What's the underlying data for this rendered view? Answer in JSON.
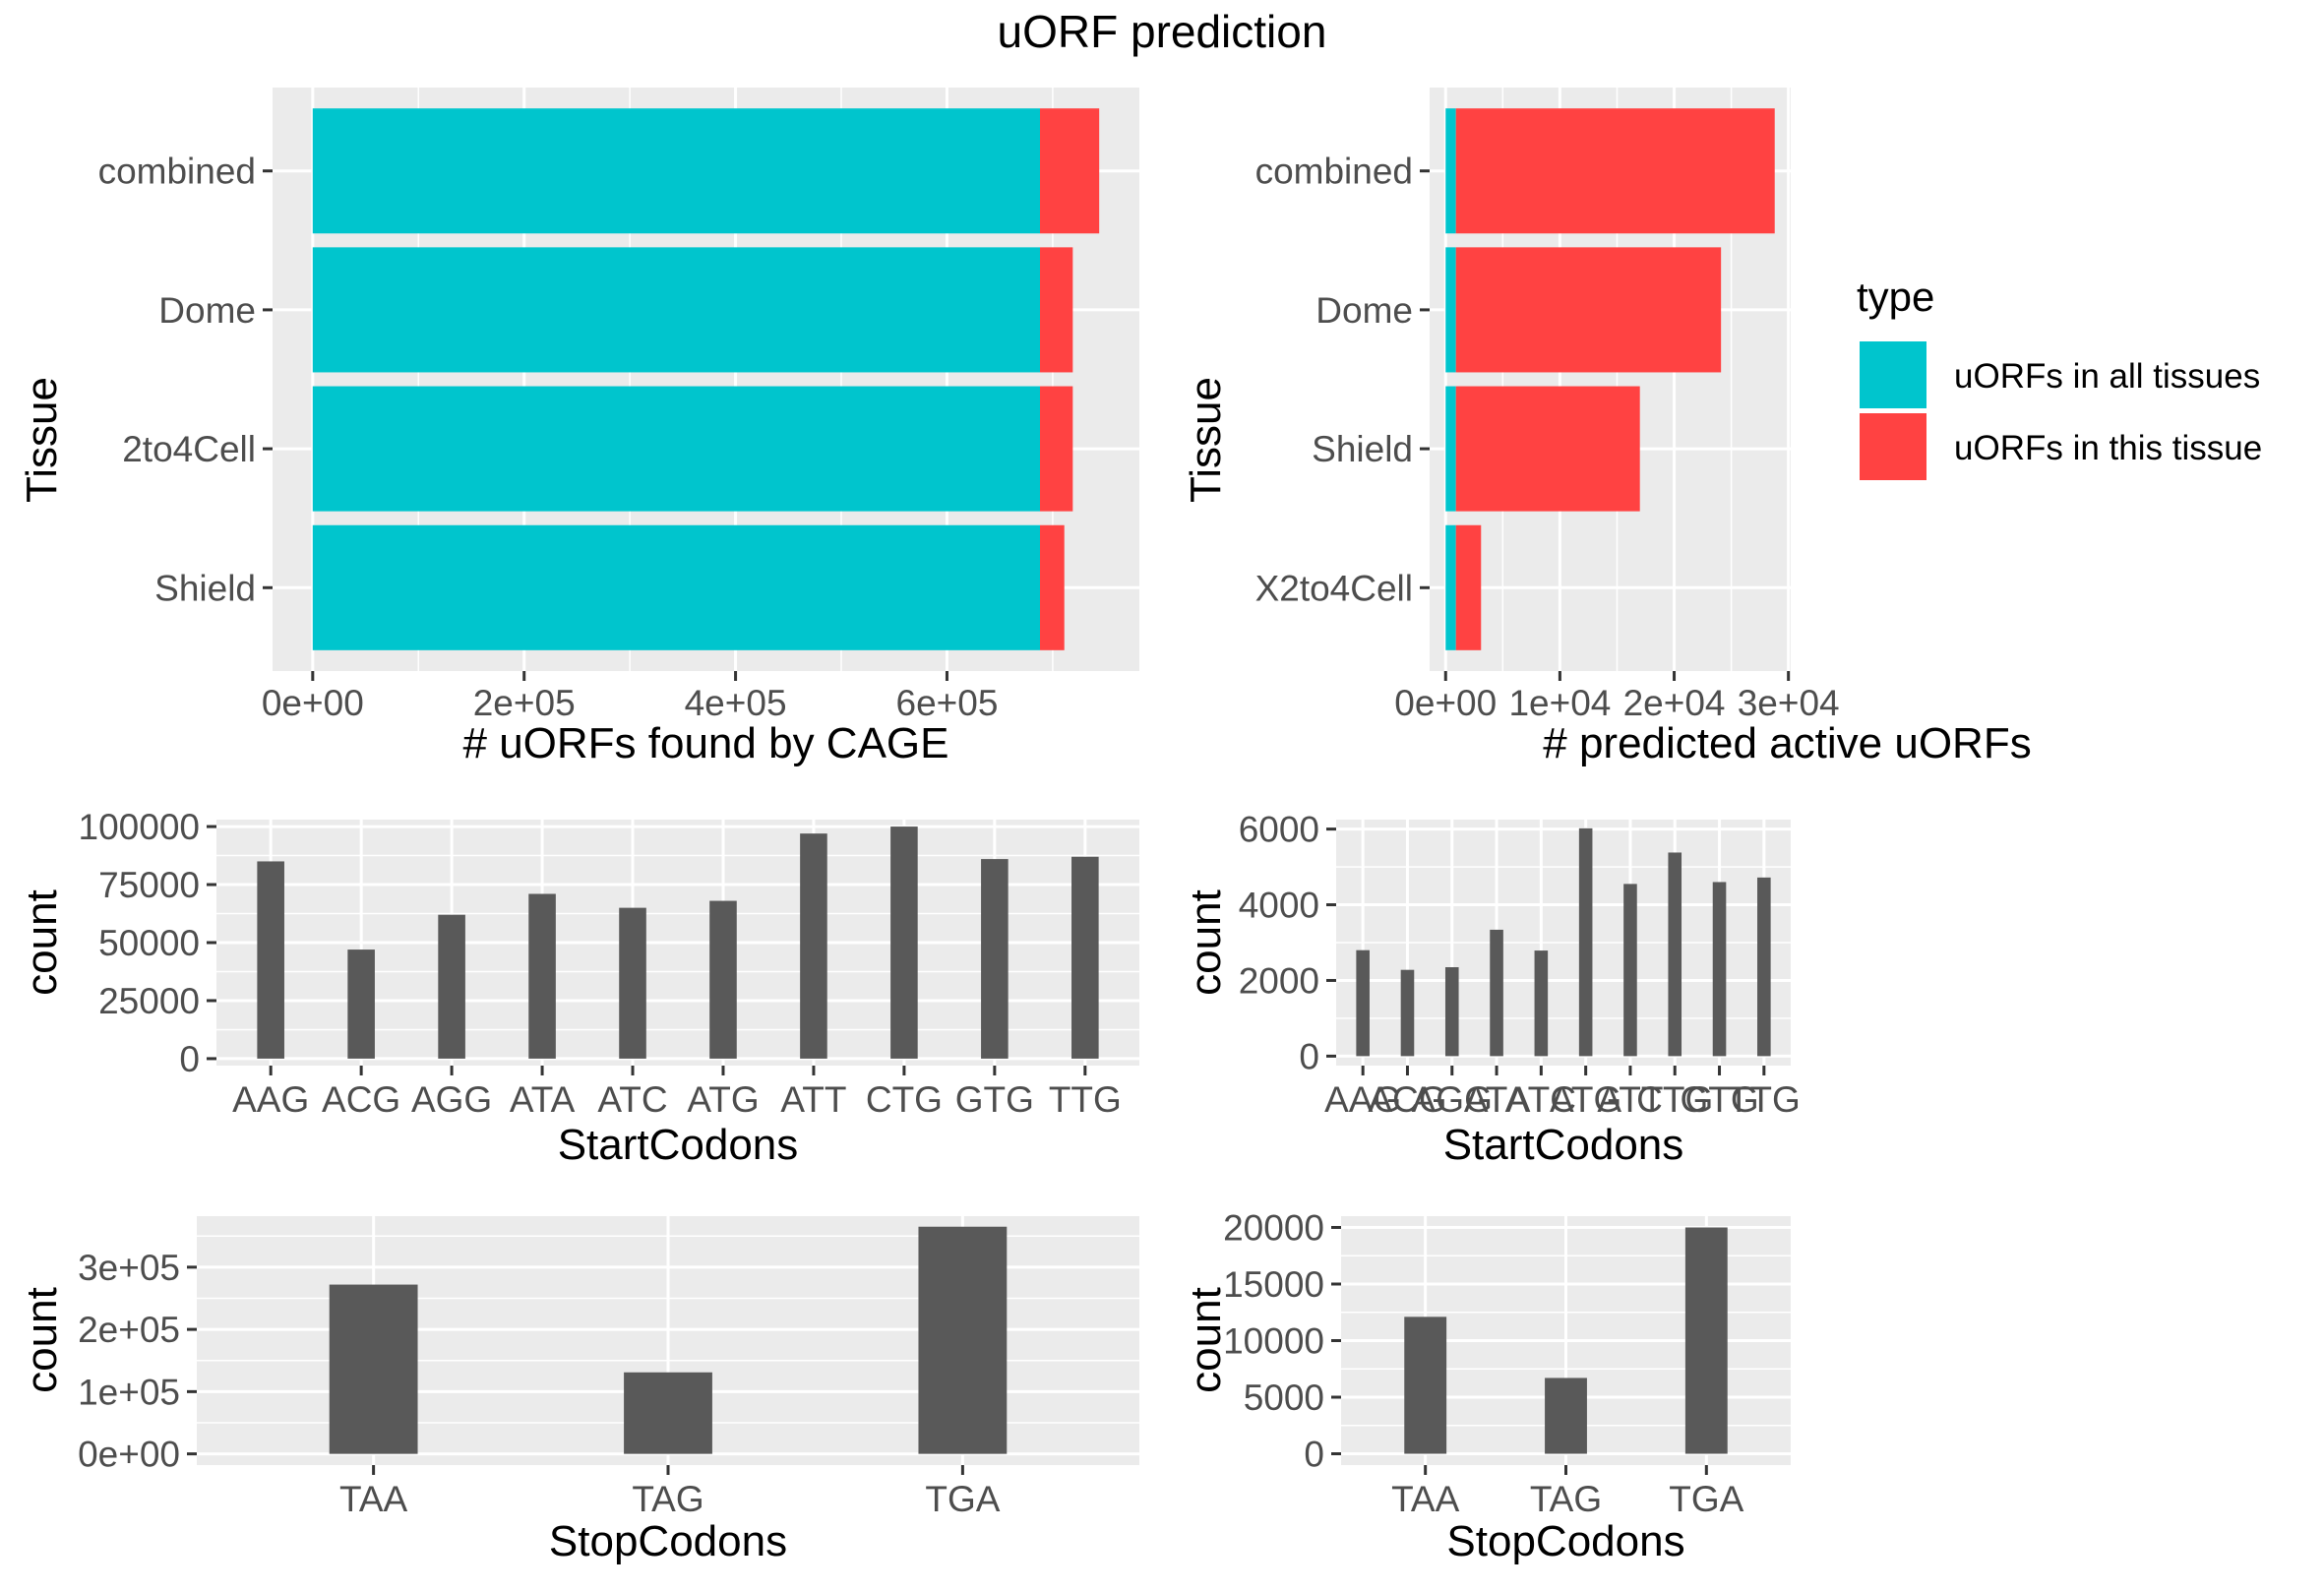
{
  "title": "uORF prediction",
  "colors": {
    "panel_bg": "#ebebeb",
    "grid": "#ffffff",
    "bar_gray": "#595959",
    "tick": "#333333",
    "tick_label": "#4d4d4d",
    "all_tissues": "#00c5cd",
    "this_tissue": "#ff4242"
  },
  "legend": {
    "title": "type",
    "items": [
      {
        "label": "uORFs in all tissues",
        "color": "#00c5cd"
      },
      {
        "label": "uORFs in this tissue",
        "color": "#ff4242"
      }
    ]
  },
  "chart_data": [
    {
      "type": "bar",
      "orientation": "horizontal",
      "stacked": true,
      "categories": [
        "combined",
        "Dome",
        "2to4Cell",
        "Shield"
      ],
      "series": [
        {
          "name": "uORFs in all tissues",
          "values": [
            688000,
            688000,
            688000,
            688000
          ]
        },
        {
          "name": "uORFs in this tissue",
          "values": [
            56000,
            31000,
            31000,
            23000
          ]
        }
      ],
      "xlabel": "# uORFs found by CAGE",
      "ylabel": "Tissue",
      "xlim": [
        -38000,
        782000
      ],
      "xticks": [
        0,
        200000,
        400000,
        600000
      ],
      "xtick_labels": [
        "0e+00",
        "2e+05",
        "4e+05",
        "6e+05"
      ],
      "grid": true,
      "legend": "right"
    },
    {
      "type": "bar",
      "orientation": "horizontal",
      "stacked": true,
      "categories": [
        "combined",
        "Dome",
        "Shield",
        "X2to4Cell"
      ],
      "series": [
        {
          "name": "uORFs in all tissues",
          "values": [
            900,
            900,
            900,
            900
          ]
        },
        {
          "name": "uORFs in this tissue",
          "values": [
            27900,
            23200,
            16100,
            2200
          ]
        }
      ],
      "xlabel": "# predicted active uORFs",
      "ylabel": "Tissue",
      "xlim": [
        -1400,
        30200
      ],
      "xticks": [
        0,
        10000,
        20000,
        30000
      ],
      "xtick_labels": [
        "0e+00",
        "1e+04",
        "2e+04",
        "3e+04"
      ],
      "grid": true,
      "legend": "right"
    },
    {
      "type": "bar",
      "categories": [
        "AAG",
        "ACG",
        "AGG",
        "ATA",
        "ATC",
        "ATG",
        "ATT",
        "CTG",
        "GTG",
        "TTG"
      ],
      "values": [
        85000,
        47000,
        62000,
        71000,
        65000,
        68000,
        97000,
        100000,
        86000,
        87000
      ],
      "xlabel": "StartCodons",
      "ylabel": "count",
      "ylim": [
        -3000,
        103000
      ],
      "yticks": [
        0,
        25000,
        50000,
        75000,
        100000
      ],
      "ytick_labels": [
        "0",
        "25000",
        "50000",
        "75000",
        "100000"
      ],
      "grid": true
    },
    {
      "type": "bar",
      "categories": [
        "AAG",
        "ACG",
        "AGG",
        "ATA",
        "ATC",
        "ATG",
        "ATT",
        "CTG",
        "GTG",
        "TTG"
      ],
      "values": [
        2800,
        2280,
        2350,
        3340,
        2790,
        6020,
        4550,
        5380,
        4600,
        4720
      ],
      "xlabel": "StartCodons",
      "ylabel": "count",
      "ylim": [
        -250,
        6250
      ],
      "yticks": [
        0,
        2000,
        4000,
        6000
      ],
      "ytick_labels": [
        "0",
        "2000",
        "4000",
        "6000"
      ],
      "grid": true
    },
    {
      "type": "bar",
      "categories": [
        "TAA",
        "TAG",
        "TGA"
      ],
      "values": [
        272000,
        131000,
        365000
      ],
      "xlabel": "StopCodons",
      "ylabel": "count",
      "ylim": [
        -18000,
        382000
      ],
      "yticks": [
        0,
        100000,
        200000,
        300000
      ],
      "ytick_labels": [
        "0e+00",
        "1e+05",
        "2e+05",
        "3e+05"
      ],
      "grid": true
    },
    {
      "type": "bar",
      "categories": [
        "TAA",
        "TAG",
        "TGA"
      ],
      "values": [
        12100,
        6700,
        20000
      ],
      "xlabel": "StopCodons",
      "ylabel": "count",
      "ylim": [
        -1000,
        21000
      ],
      "yticks": [
        0,
        5000,
        10000,
        15000,
        20000
      ],
      "ytick_labels": [
        "0",
        "5000",
        "10000",
        "15000",
        "20000"
      ],
      "grid": true
    }
  ]
}
